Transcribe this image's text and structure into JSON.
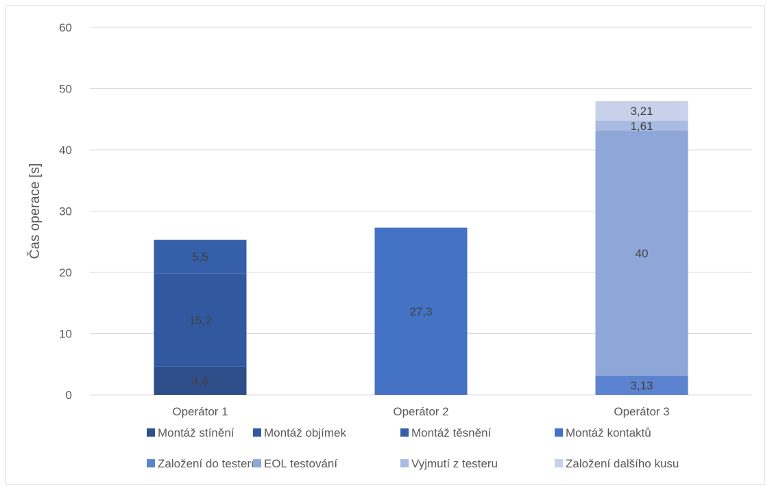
{
  "chart_data": {
    "type": "bar",
    "stacked": true,
    "categories": [
      "Operátor 1",
      "Operátor 2",
      "Operátor 3"
    ],
    "ylabel": "Čas operace [s]",
    "xlabel": "",
    "ylim": [
      0,
      60
    ],
    "yticks": [
      0,
      10,
      20,
      30,
      40,
      50,
      60
    ],
    "grid": true,
    "legend_position": "bottom",
    "series": [
      {
        "name": "Montáž stínění",
        "color": "#2f4f8a",
        "values": [
          4.6,
          0,
          0
        ],
        "labels": [
          "4,6",
          "",
          ""
        ]
      },
      {
        "name": "Montáž objímek",
        "color": "#32599f",
        "values": [
          15.2,
          0,
          0
        ],
        "labels": [
          "15,2",
          "",
          ""
        ]
      },
      {
        "name": "Montáž těsnění",
        "color": "#355fa9",
        "values": [
          5.5,
          0,
          0
        ],
        "labels": [
          "5,5",
          "",
          ""
        ]
      },
      {
        "name": "Montáž kontaktů",
        "color": "#4472c4",
        "values": [
          0,
          27.3,
          0
        ],
        "labels": [
          "",
          "27,3",
          ""
        ]
      },
      {
        "name": "Založení do testeru",
        "color": "#5b83d0",
        "values": [
          0,
          0,
          3.13
        ],
        "labels": [
          "",
          "",
          "3,13"
        ]
      },
      {
        "name": "EOL testování",
        "color": "#8fa6d8",
        "values": [
          0,
          0,
          40
        ],
        "labels": [
          "",
          "",
          "40"
        ]
      },
      {
        "name": "Vyjmutí z testeru",
        "color": "#a9bbe2",
        "values": [
          0,
          0,
          1.61
        ],
        "labels": [
          "",
          "",
          "1,61"
        ]
      },
      {
        "name": "Založení dalšího kusu",
        "color": "#c7d1ea",
        "values": [
          0,
          0,
          3.21
        ],
        "labels": [
          "",
          "",
          "3,21"
        ]
      }
    ]
  }
}
